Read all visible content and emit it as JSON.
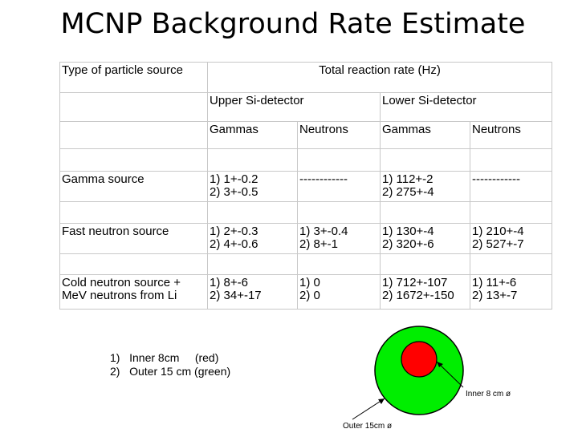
{
  "title": "MCNP Background Rate Estimate",
  "table": {
    "header_source": "Type of particle source",
    "header_rate": "Total reaction rate (Hz)",
    "upper_detector": "Upper Si-detector",
    "lower_detector": "Lower Si-detector",
    "col_gammas": "Gammas",
    "col_neutrons": "Neutrons",
    "rows": [
      {
        "source": [
          "Gamma source"
        ],
        "upper_gammas": [
          "1) 1+-0.2",
          "2) 3+-0.5"
        ],
        "upper_neutrons": [
          "------------"
        ],
        "lower_gammas": [
          "1) 112+-2",
          "2) 275+-4"
        ],
        "lower_neutrons": [
          "------------"
        ]
      },
      {
        "source": [
          "Fast neutron source"
        ],
        "upper_gammas": [
          "1) 2+-0.3",
          "2) 4+-0.6"
        ],
        "upper_neutrons": [
          "1) 3+-0.4",
          "2) 8+-1"
        ],
        "lower_gammas": [
          "1) 130+-4",
          "2) 320+-6"
        ],
        "lower_neutrons": [
          "1) 210+-4",
          "2) 527+-7"
        ]
      },
      {
        "source": [
          "Cold neutron source +",
          "MeV neutrons from Li"
        ],
        "upper_gammas": [
          "1) 8+-6",
          "2) 34+-17"
        ],
        "upper_neutrons": [
          "1) 0",
          "2) 0"
        ],
        "lower_gammas": [
          "1) 712+-107",
          "2) 1672+-150"
        ],
        "lower_neutrons": [
          "1) 11+-6",
          "2) 13+-7"
        ]
      }
    ]
  },
  "legend": {
    "item1": "1)   Inner 8cm     (red)",
    "item2": "2)   Outer 15 cm (green)"
  },
  "diagram": {
    "inner_label": "Inner 8 cm ø",
    "outer_label": "Outer 15cm ø",
    "inner_color": "#ff0000",
    "outer_color": "#00ee00",
    "line_color": "#000000"
  }
}
